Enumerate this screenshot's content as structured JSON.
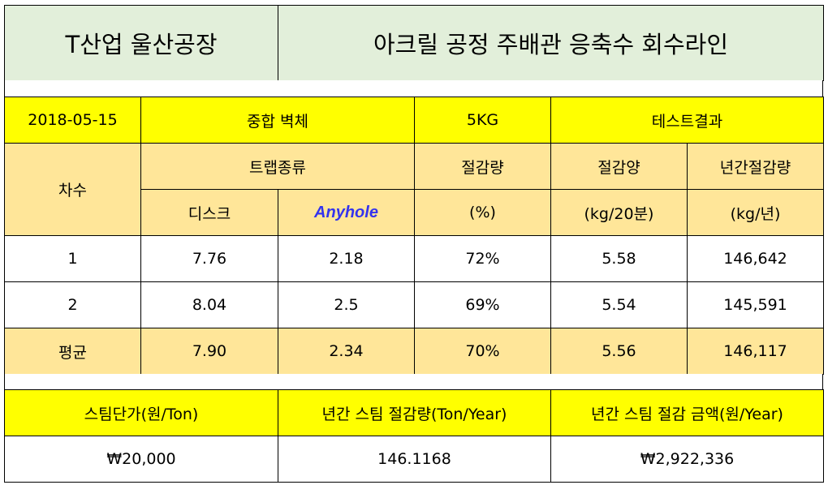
{
  "title": {
    "plant": "T산업 울산공장",
    "line": "아크릴 공정 주배관 응축수 회수라인"
  },
  "info_row": {
    "date": "2018-05-15",
    "process": "중합 벽체",
    "weight": "5KG",
    "result": "테스트결과"
  },
  "header": {
    "round": "차수",
    "trap_type": "트랩종류",
    "reduction_rate": "절감량",
    "reduction_amount": "절감양",
    "annual_reduction": "년간절감량",
    "disk": "디스크",
    "anyhole": "Anyhole",
    "unit_percent": "(%)",
    "unit_kg20": "(kg/20분)",
    "unit_kgyear": "(kg/년)"
  },
  "rows": [
    {
      "round": "1",
      "disk": "7.76",
      "anyhole": "2.18",
      "rate": "72%",
      "amount": "5.58",
      "annual": "146,642"
    },
    {
      "round": "2",
      "disk": "8.04",
      "anyhole": "2.5",
      "rate": "69%",
      "amount": "5.54",
      "annual": "145,591"
    }
  ],
  "average": {
    "label": "평균",
    "disk": "7.90",
    "anyhole": "2.34",
    "rate": "70%",
    "amount": "5.56",
    "annual": "146,117"
  },
  "summary": {
    "headers": [
      "스팀단가(원/Ton)",
      "년간 스팀 절감량(Ton/Year)",
      "년간 스팀 절감 금액(원/Year)"
    ],
    "values": [
      "₩20,000",
      "146.1168",
      "₩2,922,336"
    ]
  },
  "colors": {
    "title_bg": "#e2efda",
    "yellow": "#ffff00",
    "tan": "#ffe699",
    "anyhole_text": "#3333ee"
  }
}
